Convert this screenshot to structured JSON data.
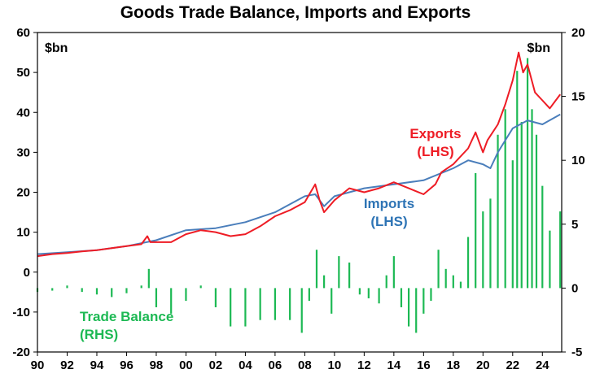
{
  "chart_data": {
    "type": "line",
    "title": "Goods Trade Balance, Imports and Exports",
    "left_axis": {
      "unit": "$bn",
      "ylim": [
        -20,
        60
      ],
      "ticks": [
        "60",
        "50",
        "40",
        "30",
        "20",
        "10",
        "0",
        "-10",
        "-20"
      ]
    },
    "right_axis": {
      "unit": "$bn",
      "ylim": [
        -5,
        20
      ],
      "ticks": [
        "20",
        "15",
        "10",
        "5",
        "0",
        "-5"
      ]
    },
    "x_ticks": [
      "90",
      "92",
      "94",
      "96",
      "98",
      "00",
      "02",
      "04",
      "06",
      "08",
      "10",
      "12",
      "14",
      "16",
      "18",
      "20",
      "22",
      "24"
    ],
    "xlim": [
      1990,
      2025.3
    ],
    "colors": {
      "exports": "#ee1c25",
      "imports": "#4a7ebb",
      "balance": "#1db954",
      "text_exports": "#ee1c25",
      "text_imports": "#2e74b5",
      "text_balance": "#1db954"
    },
    "series": [
      {
        "name": "Exports",
        "label_line1": "Exports",
        "label_line2": "(LHS)",
        "axis": "left",
        "x": [
          1990,
          1991,
          1992,
          1993,
          1994,
          1995,
          1996,
          1997,
          1997.4,
          1997.6,
          1998,
          1999,
          2000,
          2001,
          2002,
          2003,
          2004,
          2005,
          2006,
          2007,
          2008,
          2008.7,
          2009.0,
          2009.3,
          2010,
          2011,
          2012,
          2013,
          2014,
          2015,
          2016,
          2016.8,
          2017.2,
          2018,
          2019,
          2019.5,
          2020,
          2020.3,
          2021,
          2021.5,
          2022,
          2022.4,
          2022.7,
          2023,
          2023.5,
          2024,
          2024.5,
          2025.2
        ],
        "values": [
          4,
          4.5,
          4.8,
          5.2,
          5.5,
          6.0,
          6.5,
          7.0,
          9.0,
          7.5,
          7.5,
          7.5,
          9.5,
          10.5,
          10.0,
          9.0,
          9.5,
          11.5,
          14.0,
          15.5,
          17.5,
          22.0,
          18.0,
          15.0,
          18.0,
          21.0,
          20.0,
          21.0,
          22.5,
          21.0,
          19.5,
          22.0,
          25.0,
          27.0,
          31.0,
          35.0,
          30.0,
          33.0,
          37.0,
          42.0,
          48.0,
          55.0,
          50.0,
          52.0,
          45.0,
          43.0,
          41.0,
          44.5
        ]
      },
      {
        "name": "Imports",
        "label_line1": "Imports",
        "label_line2": "(LHS)",
        "axis": "left",
        "x": [
          1990,
          1992,
          1994,
          1996,
          1998,
          2000,
          2002,
          2004,
          2006,
          2008,
          2008.7,
          2009.3,
          2010,
          2012,
          2014,
          2016,
          2018,
          2019,
          2020,
          2020.5,
          2021,
          2022,
          2023,
          2024,
          2025.2
        ],
        "values": [
          4.5,
          5.0,
          5.5,
          6.5,
          8.0,
          10.5,
          11.0,
          12.5,
          15.0,
          19.0,
          19.5,
          16.5,
          19.0,
          21.0,
          22.0,
          23.0,
          26.0,
          28.0,
          27.0,
          26.0,
          30.0,
          36.0,
          38.0,
          37.0,
          39.5
        ]
      },
      {
        "name": "Trade Balance",
        "label_line1": "Trade Balance",
        "label_line2": "(RHS)",
        "axis": "right",
        "kind": "bar",
        "x": [
          1990,
          1991,
          1992,
          1993,
          1994,
          1995,
          1996,
          1997,
          1997.5,
          1998,
          1999,
          2000,
          2001,
          2002,
          2003,
          2004,
          2005,
          2006,
          2007,
          2007.8,
          2008.3,
          2008.8,
          2009.3,
          2009.8,
          2010.3,
          2011,
          2011.7,
          2012.3,
          2013,
          2013.5,
          2014,
          2014.5,
          2015,
          2015.5,
          2016,
          2016.5,
          2017,
          2017.5,
          2018,
          2018.5,
          2019,
          2019.5,
          2020,
          2020.5,
          2021,
          2021.5,
          2022,
          2022.3,
          2022.6,
          2023,
          2023.3,
          2023.6,
          2024,
          2024.5,
          2025.2
        ],
        "values": [
          -0.3,
          -0.2,
          0.2,
          -0.3,
          -0.5,
          -0.7,
          -0.4,
          0.2,
          1.5,
          -1.5,
          -2.0,
          -1.0,
          0.2,
          -1.5,
          -3.0,
          -3.0,
          -2.5,
          -2.5,
          -2.5,
          -3.5,
          -1.0,
          3.0,
          1.0,
          -2.0,
          2.5,
          2.0,
          -0.5,
          -0.8,
          -1.2,
          1.0,
          2.5,
          -1.5,
          -3.0,
          -3.5,
          -2.0,
          -1.0,
          3.0,
          1.5,
          1.0,
          0.5,
          4.0,
          9.0,
          6.0,
          7.0,
          12.0,
          14.0,
          10.0,
          17.0,
          13.0,
          18.0,
          14.0,
          12.0,
          8.0,
          4.5,
          6.0
        ]
      }
    ]
  }
}
